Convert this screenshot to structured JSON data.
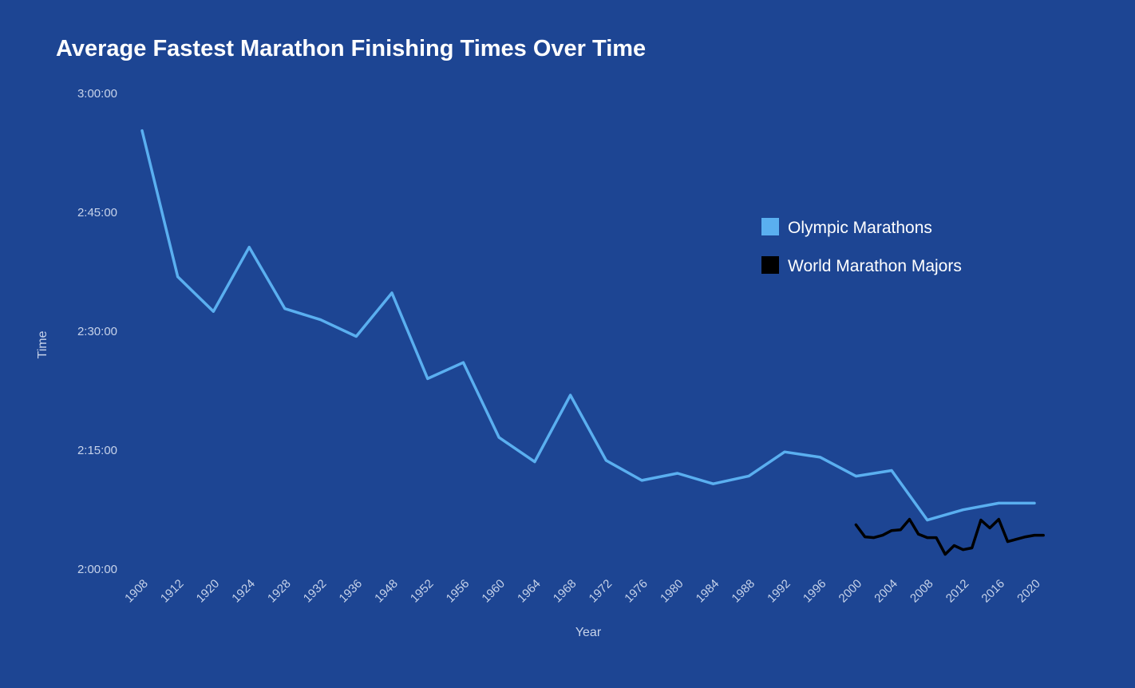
{
  "chart_data": {
    "type": "line",
    "title": "Average Fastest Marathon Finishing Times Over Time",
    "xlabel": "Year",
    "ylabel": "Time",
    "x_tick_labels": [
      "1908",
      "1912",
      "1920",
      "1924",
      "1928",
      "1932",
      "1936",
      "1948",
      "1952",
      "1956",
      "1960",
      "1964",
      "1968",
      "1972",
      "1976",
      "1980",
      "1984",
      "1988",
      "1992",
      "1996",
      "2000",
      "2004",
      "2008",
      "2012",
      "2016",
      "2020"
    ],
    "y_ticks": [
      {
        "label": "3:00:00",
        "seconds": 10800
      },
      {
        "label": "2:45:00",
        "seconds": 9900
      },
      {
        "label": "2:30:00",
        "seconds": 9000
      },
      {
        "label": "2:15:00",
        "seconds": 8100
      },
      {
        "label": "2:00:00",
        "seconds": 7200
      }
    ],
    "ylim_seconds": [
      7200,
      10800
    ],
    "y_unit": "seconds",
    "grid": false,
    "legend_position": "right",
    "series": [
      {
        "name": "Olympic Marathons",
        "color": "#5aaff0",
        "x": [
          1908,
          1912,
          1920,
          1924,
          1928,
          1932,
          1936,
          1948,
          1952,
          1956,
          1960,
          1964,
          1968,
          1972,
          1976,
          1980,
          1984,
          1988,
          1992,
          1996,
          2000,
          2004,
          2008,
          2012,
          2016,
          2020
        ],
        "values": [
          10518,
          9412,
          9150,
          9636,
          9171,
          9087,
          8961,
          9290,
          8641,
          8763,
          8196,
          8012,
          8516,
          8022,
          7871,
          7925,
          7845,
          7904,
          8087,
          8046,
          7903,
          7946,
          7571,
          7649,
          7699,
          7699
        ]
      },
      {
        "name": "World Marathon Majors",
        "color": "#000000",
        "x": [
          2000,
          2001,
          2002,
          2003,
          2004,
          2005,
          2006,
          2007,
          2008,
          2009,
          2010,
          2011,
          2012,
          2013,
          2014,
          2015,
          2016,
          2017,
          2018,
          2019,
          2020,
          2021
        ],
        "values": [
          7535,
          7444,
          7438,
          7456,
          7492,
          7498,
          7577,
          7464,
          7438,
          7438,
          7312,
          7378,
          7347,
          7360,
          7571,
          7511,
          7577,
          7408,
          7426,
          7444,
          7456,
          7456
        ]
      }
    ]
  }
}
